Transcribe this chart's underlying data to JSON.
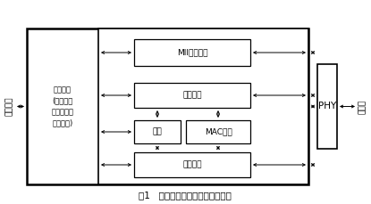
{
  "title": "图1   以太网控制器的结构设计框图",
  "bg_color": "#ffffff",
  "left_label": "上层协议",
  "right_label": "以太网",
  "phy_label": "PHY",
  "host_label": "主机接口\n(寄存器、\n发送队列、\n接收队列)",
  "mii_label": "MII管理模块",
  "tx_label": "发送模块",
  "state_label": "状态",
  "mac_label": "MAC控制",
  "rx_label": "接收模块",
  "font_size": 6.5,
  "title_font_size": 7.5
}
